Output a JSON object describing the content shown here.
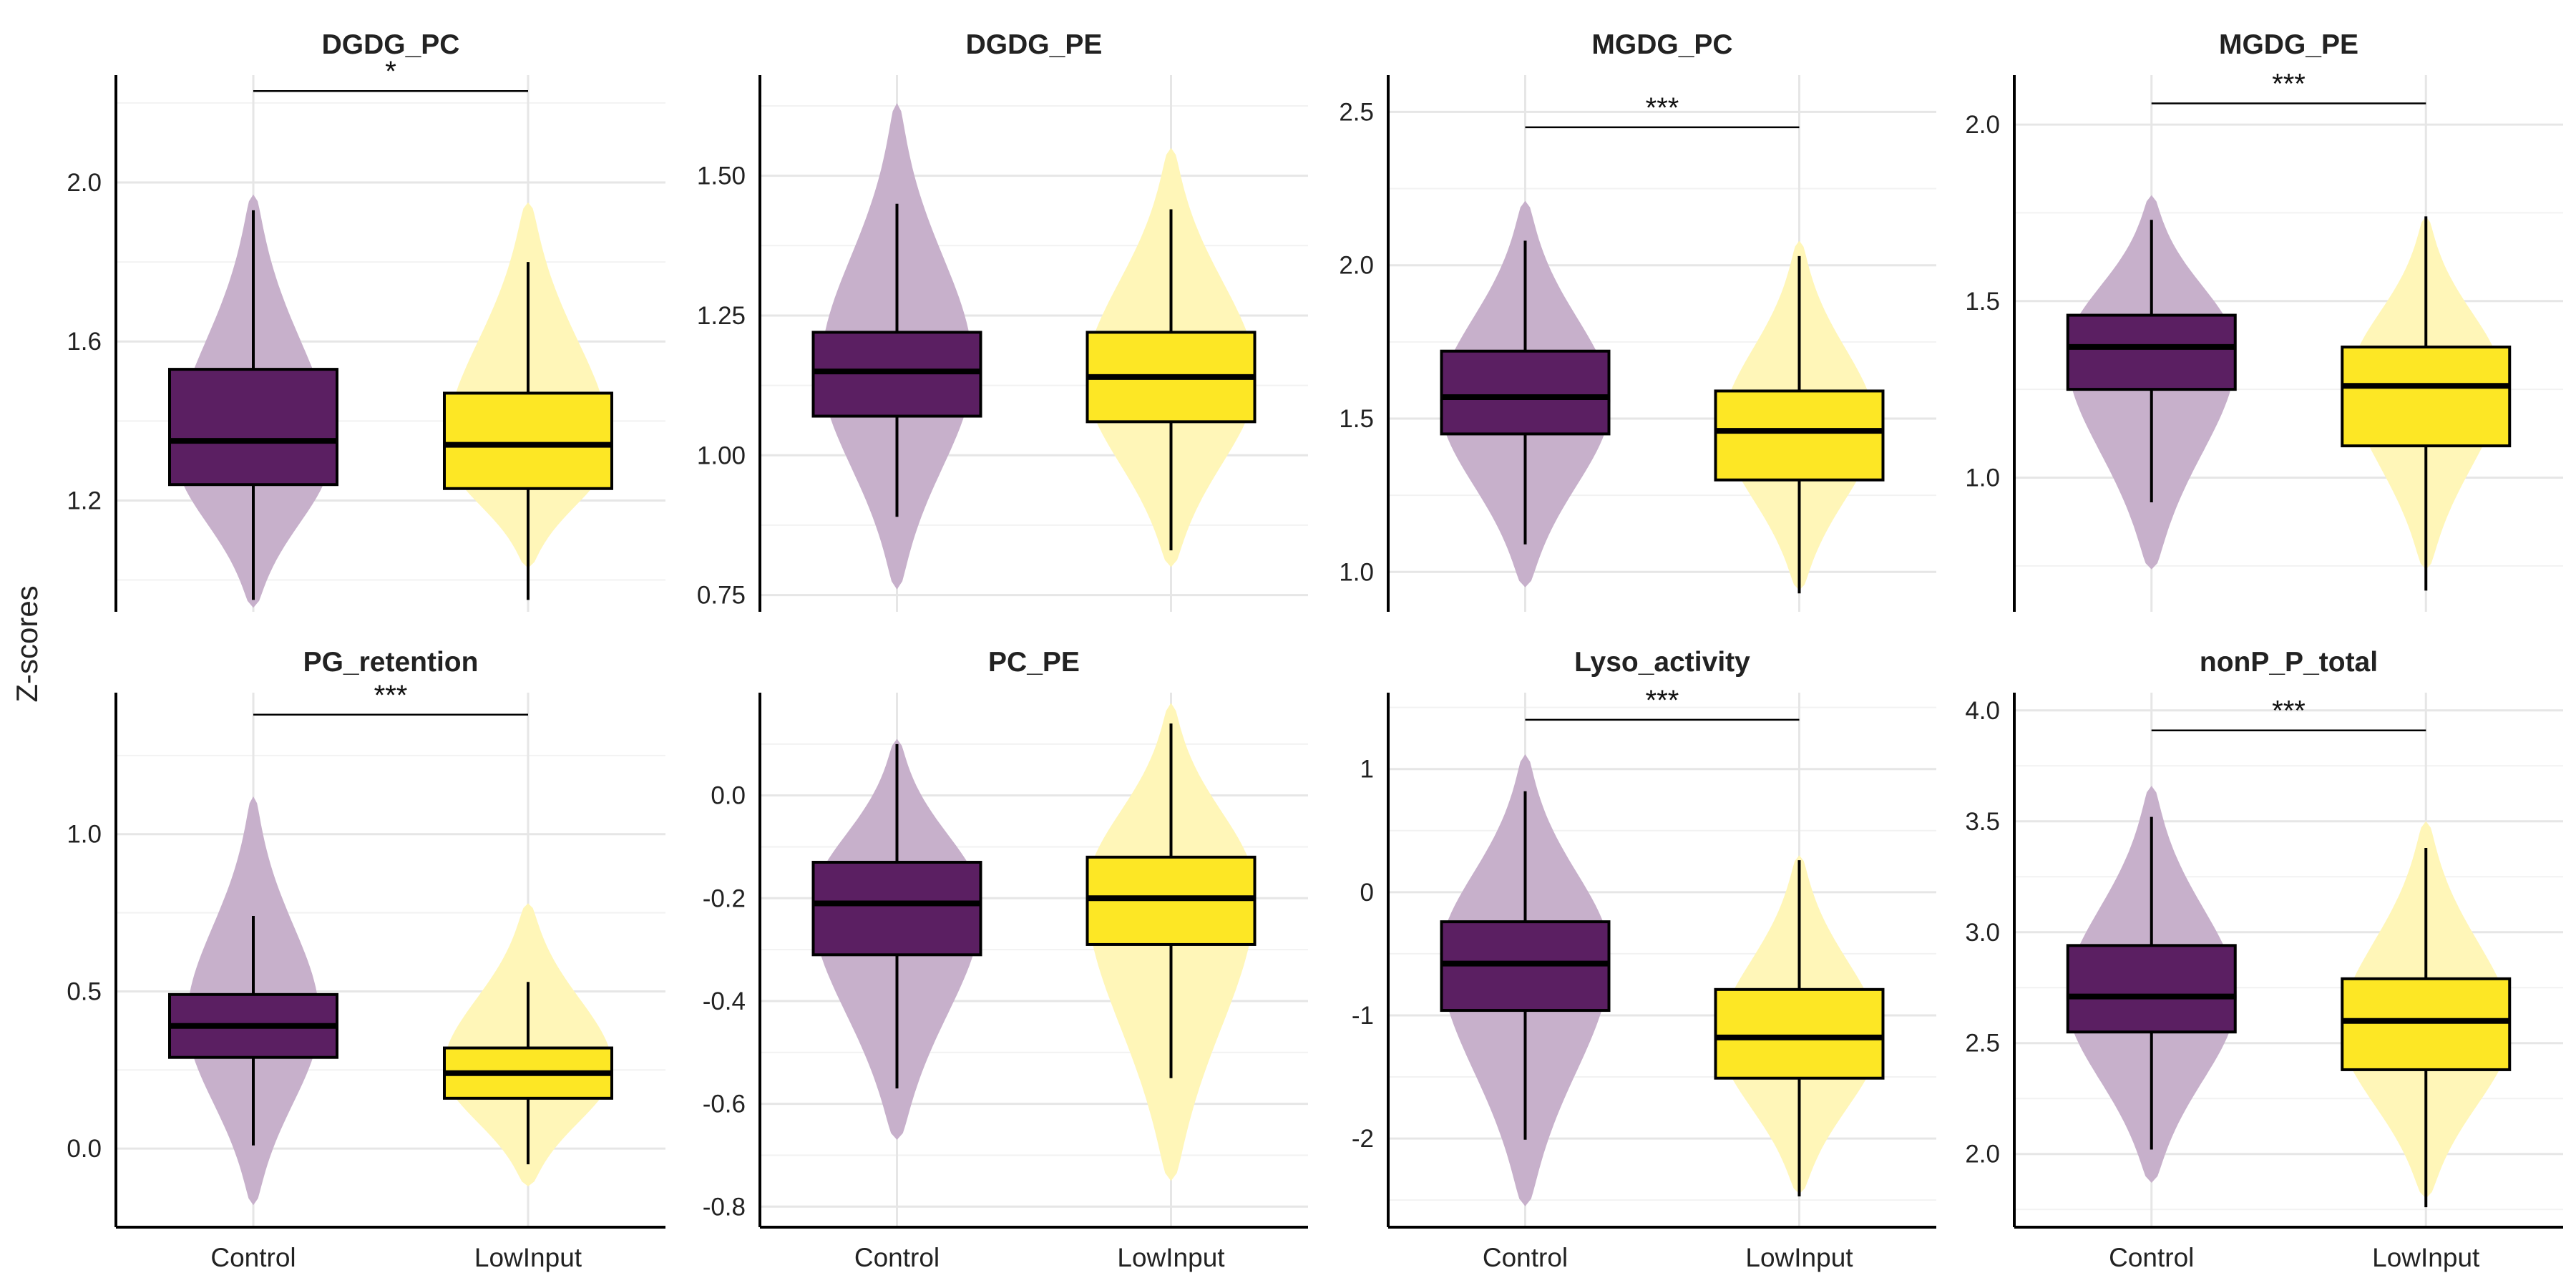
{
  "figure": {
    "ylabel": "Z-scores"
  },
  "colors": {
    "Control": "#5b1f62",
    "LowInput": "#fde725",
    "violin_Control": "#c7b0cb",
    "violin_LowInput": "#fff6b8",
    "grid_major": "#e6e6e6",
    "grid_minor": "#f2f2f2",
    "axis": "#000000"
  },
  "chart_data": [
    {
      "type": "box+violin",
      "title": "DGDG_PC",
      "categories": [
        "Control",
        "LowInput"
      ],
      "ylim": [
        0.92,
        2.27
      ],
      "yticks": [
        1.2,
        1.6,
        2.0
      ],
      "ytick_labels": [
        "1.2",
        "1.6",
        "2.0"
      ],
      "significance": "*",
      "sig_y": 2.23,
      "grid": true,
      "boxes": [
        {
          "group": "Control",
          "whisker_low": 0.95,
          "q1": 1.24,
          "median": 1.35,
          "q3": 1.53,
          "whisker_high": 1.93,
          "violin_min": 0.93,
          "violin_max": 1.97,
          "violin_peak": 1.3,
          "violin_halfwidth": 0.42
        },
        {
          "group": "LowInput",
          "whisker_low": 0.95,
          "q1": 1.23,
          "median": 1.34,
          "q3": 1.47,
          "whisker_high": 1.8,
          "violin_min": 1.03,
          "violin_max": 1.95,
          "violin_peak": 1.3,
          "violin_halfwidth": 0.45
        }
      ]
    },
    {
      "type": "box+violin",
      "title": "DGDG_PE",
      "categories": [
        "Control",
        "LowInput"
      ],
      "ylim": [
        0.72,
        1.68
      ],
      "yticks": [
        0.75,
        1.0,
        1.25,
        1.5
      ],
      "ytick_labels": [
        "0.75",
        "1.00",
        "1.25",
        "1.50"
      ],
      "significance": "",
      "grid": true,
      "boxes": [
        {
          "group": "Control",
          "whisker_low": 0.89,
          "q1": 1.07,
          "median": 1.15,
          "q3": 1.22,
          "whisker_high": 1.45,
          "violin_min": 0.76,
          "violin_max": 1.63,
          "violin_peak": 1.15,
          "violin_halfwidth": 0.4
        },
        {
          "group": "LowInput",
          "whisker_low": 0.83,
          "q1": 1.06,
          "median": 1.14,
          "q3": 1.22,
          "whisker_high": 1.44,
          "violin_min": 0.8,
          "violin_max": 1.55,
          "violin_peak": 1.13,
          "violin_halfwidth": 0.45
        }
      ]
    },
    {
      "type": "box+violin",
      "title": "MGDG_PC",
      "categories": [
        "Control",
        "LowInput"
      ],
      "ylim": [
        0.87,
        2.62
      ],
      "yticks": [
        1.0,
        1.5,
        2.0,
        2.5
      ],
      "ytick_labels": [
        "1.0",
        "1.5",
        "2.0",
        "2.5"
      ],
      "significance": "***",
      "sig_y": 2.45,
      "grid": true,
      "boxes": [
        {
          "group": "Control",
          "whisker_low": 1.09,
          "q1": 1.45,
          "median": 1.57,
          "q3": 1.72,
          "whisker_high": 2.08,
          "violin_min": 0.95,
          "violin_max": 2.21,
          "violin_peak": 1.55,
          "violin_halfwidth": 0.45
        },
        {
          "group": "LowInput",
          "whisker_low": 0.93,
          "q1": 1.3,
          "median": 1.46,
          "q3": 1.59,
          "whisker_high": 2.03,
          "violin_min": 0.94,
          "violin_max": 2.08,
          "violin_peak": 1.47,
          "violin_halfwidth": 0.4
        }
      ]
    },
    {
      "type": "box+violin",
      "title": "MGDG_PE",
      "categories": [
        "Control",
        "LowInput"
      ],
      "ylim": [
        0.62,
        2.14
      ],
      "yticks": [
        1.0,
        1.5,
        2.0
      ],
      "ytick_labels": [
        "1.0",
        "1.5",
        "2.0"
      ],
      "significance": "***",
      "sig_y": 2.06,
      "grid": true,
      "boxes": [
        {
          "group": "Control",
          "whisker_low": 0.93,
          "q1": 1.25,
          "median": 1.37,
          "q3": 1.46,
          "whisker_high": 1.73,
          "violin_min": 0.74,
          "violin_max": 1.8,
          "violin_peak": 1.37,
          "violin_halfwidth": 0.45
        },
        {
          "group": "LowInput",
          "whisker_low": 0.68,
          "q1": 1.09,
          "median": 1.26,
          "q3": 1.37,
          "whisker_high": 1.74,
          "violin_min": 0.74,
          "violin_max": 1.74,
          "violin_peak": 1.28,
          "violin_halfwidth": 0.4
        }
      ]
    },
    {
      "type": "box+violin",
      "title": "PG_retention",
      "categories": [
        "Control",
        "LowInput"
      ],
      "ylim": [
        -0.25,
        1.45
      ],
      "yticks": [
        0.0,
        0.5,
        1.0
      ],
      "ytick_labels": [
        "0.0",
        "0.5",
        "1.0"
      ],
      "significance": "***",
      "sig_y": 1.38,
      "grid": true,
      "boxes": [
        {
          "group": "Control",
          "whisker_low": 0.01,
          "q1": 0.29,
          "median": 0.39,
          "q3": 0.49,
          "whisker_high": 0.74,
          "violin_min": -0.18,
          "violin_max": 1.12,
          "violin_peak": 0.4,
          "violin_halfwidth": 0.35
        },
        {
          "group": "LowInput",
          "whisker_low": -0.05,
          "q1": 0.16,
          "median": 0.24,
          "q3": 0.32,
          "whisker_high": 0.53,
          "violin_min": -0.12,
          "violin_max": 0.78,
          "violin_peak": 0.24,
          "violin_halfwidth": 0.45
        }
      ]
    },
    {
      "type": "box+violin",
      "title": "PC_PE",
      "categories": [
        "Control",
        "LowInput"
      ],
      "ylim": [
        -0.84,
        0.2
      ],
      "yticks": [
        -0.8,
        -0.6,
        -0.4,
        -0.2,
        0.0
      ],
      "ytick_labels": [
        "-0.8",
        "-0.6",
        "-0.4",
        "-0.2",
        "0.0"
      ],
      "significance": "",
      "grid": true,
      "boxes": [
        {
          "group": "Control",
          "whisker_low": -0.57,
          "q1": -0.31,
          "median": -0.21,
          "q3": -0.13,
          "whisker_high": 0.1,
          "violin_min": -0.67,
          "violin_max": 0.11,
          "violin_peak": -0.2,
          "violin_halfwidth": 0.45
        },
        {
          "group": "LowInput",
          "whisker_low": -0.55,
          "q1": -0.29,
          "median": -0.2,
          "q3": -0.12,
          "whisker_high": 0.14,
          "violin_min": -0.75,
          "violin_max": 0.18,
          "violin_peak": -0.17,
          "violin_halfwidth": 0.45
        }
      ]
    },
    {
      "type": "box+violin",
      "title": "Lyso_activity",
      "categories": [
        "Control",
        "LowInput"
      ],
      "ylim": [
        -2.72,
        1.62
      ],
      "yticks": [
        -2,
        -1,
        0,
        1
      ],
      "ytick_labels": [
        "-2",
        "-1",
        "0",
        "1"
      ],
      "significance": "***",
      "sig_y": 1.4,
      "grid": true,
      "boxes": [
        {
          "group": "Control",
          "whisker_low": -2.01,
          "q1": -0.96,
          "median": -0.58,
          "q3": -0.24,
          "whisker_high": 0.82,
          "violin_min": -2.55,
          "violin_max": 1.12,
          "violin_peak": -0.5,
          "violin_halfwidth": 0.45
        },
        {
          "group": "LowInput",
          "whisker_low": -2.47,
          "q1": -1.51,
          "median": -1.18,
          "q3": -0.79,
          "whisker_high": 0.26,
          "violin_min": -2.45,
          "violin_max": 0.3,
          "violin_peak": -1.2,
          "violin_halfwidth": 0.42
        }
      ]
    },
    {
      "type": "box+violin",
      "title": "nonP_P_total",
      "categories": [
        "Control",
        "LowInput"
      ],
      "ylim": [
        1.67,
        4.08
      ],
      "yticks": [
        2.0,
        2.5,
        3.0,
        3.5,
        4.0
      ],
      "ytick_labels": [
        "2.0",
        "2.5",
        "3.0",
        "3.5",
        "4.0"
      ],
      "significance": "***",
      "sig_y": 3.91,
      "grid": true,
      "boxes": [
        {
          "group": "Control",
          "whisker_low": 2.02,
          "q1": 2.55,
          "median": 2.71,
          "q3": 2.94,
          "whisker_high": 3.52,
          "violin_min": 1.87,
          "violin_max": 3.66,
          "violin_peak": 2.7,
          "violin_halfwidth": 0.45
        },
        {
          "group": "LowInput",
          "whisker_low": 1.76,
          "q1": 2.38,
          "median": 2.6,
          "q3": 2.79,
          "whisker_high": 3.38,
          "violin_min": 1.8,
          "violin_max": 3.5,
          "violin_peak": 2.55,
          "violin_halfwidth": 0.45
        }
      ]
    }
  ]
}
